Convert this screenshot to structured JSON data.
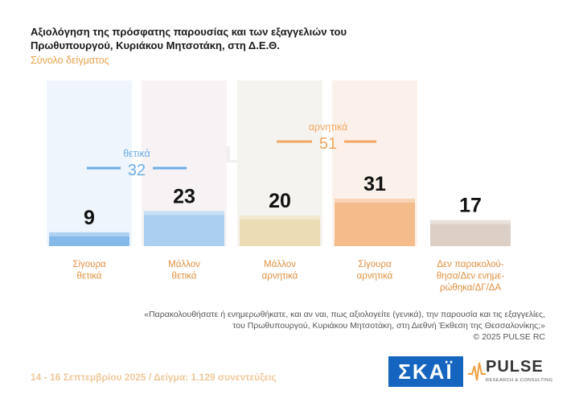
{
  "title_line1": "Αξιολόγηση της πρόσφατης παρουσίας και των εξαγγελιών του",
  "title_line2": "Πρωθυπουργού, Κυριάκου Μητσοτάκη, στη Δ.Ε.Θ.",
  "subtitle": "Σύνολο δείγματος",
  "watermark": "PULSE",
  "chart_data": {
    "type": "bar",
    "categories": [
      [
        "Σίγουρα",
        "θετικά"
      ],
      [
        "Μάλλον",
        "θετικά"
      ],
      [
        "Μάλλον",
        "αρνητικά"
      ],
      [
        "Σίγουρα",
        "αρνητικά"
      ],
      [
        "Δεν παρακολού-",
        "θησα/Δεν ενημε-",
        "ρώθηκα/ΔΓ/ΔΑ"
      ]
    ],
    "values": [
      9,
      23,
      20,
      31,
      17
    ],
    "colors": [
      "#72aee6",
      "#9cc8ef",
      "#ead7a8",
      "#f2b27a",
      "#d6c7bb"
    ],
    "ylim": [
      0,
      100
    ],
    "groups": [
      {
        "label": "θετικά",
        "value": "32",
        "color": "#6aaee8"
      },
      {
        "label": "αρνητικά",
        "value": "51",
        "color": "#f0a860"
      }
    ]
  },
  "question_line1": "«Παρακολουθήσατε ή ενημερωθήκατε, και αν ναι, πως αξιολογείτε (γενικά), την παρουσία και τις εξαγγελίες,",
  "question_line2": "του Πρωθυπουργού, Κυριάκου Μητσοτάκη, στη Διεθνή Έκθεση της Θεσσαλονίκης;»",
  "copyright": "© 2025 PULSE RC",
  "footer": "14 - 16 Σεπτεμβρίου 2025 / Δείγμα: 1.129 συνεντεύξεις",
  "logos": {
    "skai": "ΣΚΑΪ",
    "pulse": "PULSE",
    "pulse_tag": "RESEARCH & CONSULTING"
  }
}
